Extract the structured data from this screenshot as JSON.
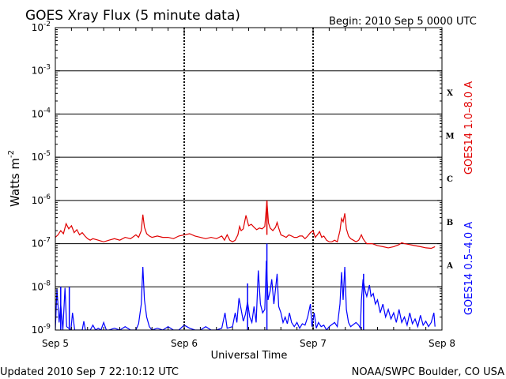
{
  "header": {
    "title": "GOES Xray Flux (5 minute data)",
    "begin": "Begin:  2010 Sep 5 0000 UTC"
  },
  "footer": {
    "updated": "Updated 2010 Sep  7 22:10:12 UTC",
    "source": "NOAA/SWPC Boulder, CO USA"
  },
  "colors": {
    "long_channel": "#e00000",
    "short_channel": "#0000ff",
    "axis": "#000000"
  },
  "chart_data": {
    "type": "line",
    "title": "GOES Xray Flux (5 minute data)",
    "xlabel": "Universal Time",
    "ylabel": "Watts m",
    "ylabel_sup": "-2",
    "yscale": "log",
    "ylim": [
      1e-09,
      0.01
    ],
    "xlim": [
      0,
      72
    ],
    "x_units": "hours since 2010 Sep 5 0000 UTC",
    "x_ticks": [
      {
        "value": 0,
        "label": "Sep 5"
      },
      {
        "value": 24,
        "label": "Sep 6"
      },
      {
        "value": 48,
        "label": "Sep 7"
      },
      {
        "value": 72,
        "label": "Sep 8"
      }
    ],
    "y_ticks": [
      {
        "value": 1e-09,
        "base": "10",
        "exp": "-9"
      },
      {
        "value": 1e-08,
        "base": "10",
        "exp": "-8"
      },
      {
        "value": 1e-07,
        "base": "10",
        "exp": "-7"
      },
      {
        "value": 1e-06,
        "base": "10",
        "exp": "-6"
      },
      {
        "value": 1e-05,
        "base": "10",
        "exp": "-5"
      },
      {
        "value": 0.0001,
        "base": "10",
        "exp": "-4"
      },
      {
        "value": 0.001,
        "base": "10",
        "exp": "-3"
      },
      {
        "value": 0.01,
        "base": "10",
        "exp": "-2"
      }
    ],
    "flare_classes": [
      {
        "label": "A",
        "value": 3.2e-08
      },
      {
        "label": "B",
        "value": 3.2e-07
      },
      {
        "label": "C",
        "value": 3.2e-06
      },
      {
        "label": "M",
        "value": 3.2e-05
      },
      {
        "label": "X",
        "value": 0.00032
      }
    ],
    "grid": "horizontal lines at each decade; dashed vertical lines at day boundaries",
    "series": [
      {
        "name": "GOES14 1.0–8.0 A",
        "color": "#e00000",
        "points": [
          [
            0.0,
            1.4e-07
          ],
          [
            0.5,
            1.6e-07
          ],
          [
            1.0,
            2e-07
          ],
          [
            1.5,
            1.7e-07
          ],
          [
            2.0,
            2.9e-07
          ],
          [
            2.5,
            2.2e-07
          ],
          [
            3.0,
            2.6e-07
          ],
          [
            3.5,
            1.8e-07
          ],
          [
            4.0,
            2.1e-07
          ],
          [
            4.5,
            1.6e-07
          ],
          [
            5.0,
            1.8e-07
          ],
          [
            5.5,
            1.5e-07
          ],
          [
            6.0,
            1.3e-07
          ],
          [
            6.5,
            1.2e-07
          ],
          [
            7.0,
            1.3e-07
          ],
          [
            8.0,
            1.2e-07
          ],
          [
            9.0,
            1.1e-07
          ],
          [
            10.0,
            1.2e-07
          ],
          [
            11.0,
            1.3e-07
          ],
          [
            12.0,
            1.2e-07
          ],
          [
            13.0,
            1.4e-07
          ],
          [
            14.0,
            1.3e-07
          ],
          [
            15.0,
            1.6e-07
          ],
          [
            15.5,
            1.4e-07
          ],
          [
            16.0,
            2e-07
          ],
          [
            16.3,
            4.7e-07
          ],
          [
            16.6,
            2.4e-07
          ],
          [
            17.0,
            1.7e-07
          ],
          [
            17.5,
            1.5e-07
          ],
          [
            18.0,
            1.4e-07
          ],
          [
            19.0,
            1.5e-07
          ],
          [
            20.0,
            1.4e-07
          ],
          [
            21.0,
            1.4e-07
          ],
          [
            22.0,
            1.3e-07
          ],
          [
            23.0,
            1.5e-07
          ],
          [
            24.0,
            1.6e-07
          ],
          [
            25.0,
            1.7e-07
          ],
          [
            26.0,
            1.5e-07
          ],
          [
            27.0,
            1.4e-07
          ],
          [
            28.0,
            1.3e-07
          ],
          [
            29.0,
            1.4e-07
          ],
          [
            30.0,
            1.3e-07
          ],
          [
            31.0,
            1.5e-07
          ],
          [
            31.5,
            1.2e-07
          ],
          [
            32.0,
            1.6e-07
          ],
          [
            32.5,
            1.2e-07
          ],
          [
            33.0,
            1.1e-07
          ],
          [
            33.5,
            1.2e-07
          ],
          [
            34.0,
            1.6e-07
          ],
          [
            34.3,
            2.5e-07
          ],
          [
            34.6,
            2e-07
          ],
          [
            35.0,
            2.2e-07
          ],
          [
            35.5,
            4.5e-07
          ],
          [
            36.0,
            2.6e-07
          ],
          [
            36.5,
            2.8e-07
          ],
          [
            37.0,
            2.4e-07
          ],
          [
            37.5,
            2.1e-07
          ],
          [
            38.0,
            2.3e-07
          ],
          [
            38.5,
            2.2e-07
          ],
          [
            39.0,
            2.5e-07
          ],
          [
            39.4,
            9.5e-07
          ],
          [
            39.7,
            3e-07
          ],
          [
            40.0,
            2.3e-07
          ],
          [
            40.5,
            2e-07
          ],
          [
            41.0,
            2.4e-07
          ],
          [
            41.3,
            3.1e-07
          ],
          [
            41.6,
            2.3e-07
          ],
          [
            42.0,
            1.6e-07
          ],
          [
            42.5,
            1.5e-07
          ],
          [
            43.0,
            1.4e-07
          ],
          [
            43.5,
            1.6e-07
          ],
          [
            44.0,
            1.5e-07
          ],
          [
            44.5,
            1.4e-07
          ],
          [
            45.0,
            1.4e-07
          ],
          [
            45.5,
            1.5e-07
          ],
          [
            46.0,
            1.5e-07
          ],
          [
            46.5,
            1.3e-07
          ],
          [
            47.0,
            1.5e-07
          ],
          [
            47.5,
            1.8e-07
          ],
          [
            48.0,
            2e-07
          ],
          [
            48.4,
            1.4e-07
          ],
          [
            48.8,
            1.6e-07
          ],
          [
            49.2,
            1.9e-07
          ],
          [
            49.6,
            1.4e-07
          ],
          [
            50.0,
            1.5e-07
          ],
          [
            50.5,
            1.2e-07
          ],
          [
            51.0,
            1.1e-07
          ],
          [
            51.5,
            1.1e-07
          ],
          [
            52.0,
            1.2e-07
          ],
          [
            52.5,
            1.1e-07
          ],
          [
            53.0,
            2e-07
          ],
          [
            53.3,
            3.8e-07
          ],
          [
            53.6,
            3.2e-07
          ],
          [
            53.9,
            5e-07
          ],
          [
            54.2,
            2.2e-07
          ],
          [
            54.6,
            1.5e-07
          ],
          [
            55.0,
            1.3e-07
          ],
          [
            55.5,
            1.2e-07
          ],
          [
            56.0,
            1.1e-07
          ],
          [
            56.5,
            1.2e-07
          ],
          [
            57.0,
            1.6e-07
          ],
          [
            57.3,
            1.3e-07
          ],
          [
            57.7,
            1.1e-07
          ],
          [
            58.0,
            1e-07
          ],
          [
            59.0,
            1e-07
          ],
          [
            60.0,
            9e-08
          ],
          [
            61.0,
            8.5e-08
          ],
          [
            62.0,
            8e-08
          ],
          [
            63.0,
            8.5e-08
          ],
          [
            64.0,
            9.5e-08
          ],
          [
            64.5,
            1.05e-07
          ],
          [
            65.0,
            1e-07
          ],
          [
            66.0,
            9.5e-08
          ],
          [
            67.0,
            9e-08
          ],
          [
            68.0,
            8.5e-08
          ],
          [
            69.0,
            8e-08
          ],
          [
            70.0,
            7.8e-08
          ],
          [
            70.7,
            8.5e-08
          ]
        ]
      },
      {
        "name": "GOES14 0.5–4.0 A",
        "color": "#0000ff",
        "points": [
          [
            0.0,
            1e-09
          ],
          [
            0.3,
            9e-09
          ],
          [
            0.7,
            1.5e-09
          ],
          [
            1.0,
            4e-09
          ],
          [
            1.4,
            1e-09
          ],
          [
            1.8,
            9.5e-09
          ],
          [
            2.1,
            1.2e-09
          ],
          [
            2.5,
            1.1e-09
          ],
          [
            2.9,
            1e-09
          ],
          [
            3.2,
            2.5e-09
          ],
          [
            3.6,
            1e-09
          ],
          [
            5.0,
            1e-09
          ],
          [
            5.3,
            1.6e-09
          ],
          [
            5.6,
            1e-09
          ],
          [
            6.5,
            1e-09
          ],
          [
            7.0,
            1.3e-09
          ],
          [
            7.5,
            1e-09
          ],
          [
            8.0,
            1.1e-09
          ],
          [
            8.5,
            1e-09
          ],
          [
            9.0,
            1.5e-09
          ],
          [
            9.5,
            1e-09
          ],
          [
            10.0,
            1e-09
          ],
          [
            11.0,
            1.1e-09
          ],
          [
            12.0,
            1e-09
          ],
          [
            13.0,
            1.2e-09
          ],
          [
            14.0,
            1e-09
          ],
          [
            15.0,
            1e-09
          ],
          [
            15.5,
            1.4e-09
          ],
          [
            16.0,
            4e-09
          ],
          [
            16.3,
            2.9e-08
          ],
          [
            16.6,
            5e-09
          ],
          [
            17.0,
            2e-09
          ],
          [
            17.5,
            1.2e-09
          ],
          [
            18.0,
            1e-09
          ],
          [
            19.0,
            1.1e-09
          ],
          [
            20.0,
            1e-09
          ],
          [
            21.0,
            1.2e-09
          ],
          [
            22.0,
            1e-09
          ],
          [
            23.0,
            1e-09
          ],
          [
            24.0,
            1.3e-09
          ],
          [
            25.0,
            1.1e-09
          ],
          [
            26.0,
            1e-09
          ],
          [
            27.0,
            1e-09
          ],
          [
            28.0,
            1.2e-09
          ],
          [
            29.0,
            1e-09
          ],
          [
            30.0,
            1e-09
          ],
          [
            31.0,
            1.1e-09
          ],
          [
            31.6,
            2.5e-09
          ],
          [
            32.0,
            1.1e-09
          ],
          [
            33.0,
            1.2e-09
          ],
          [
            33.5,
            2.5e-09
          ],
          [
            33.8,
            1.5e-09
          ],
          [
            34.2,
            5.5e-09
          ],
          [
            34.6,
            3e-09
          ],
          [
            35.0,
            1.6e-09
          ],
          [
            35.4,
            2.3e-09
          ],
          [
            35.8,
            4.5e-09
          ],
          [
            36.2,
            2e-09
          ],
          [
            36.6,
            1.5e-09
          ],
          [
            37.0,
            3.5e-09
          ],
          [
            37.4,
            1.5e-09
          ],
          [
            37.8,
            2.4e-08
          ],
          [
            38.2,
            4e-09
          ],
          [
            38.6,
            2.5e-09
          ],
          [
            39.0,
            3e-09
          ],
          [
            39.3,
            4e-08
          ],
          [
            39.6,
            5e-09
          ],
          [
            40.0,
            8e-09
          ],
          [
            40.3,
            1.5e-08
          ],
          [
            40.7,
            4e-09
          ],
          [
            41.0,
            9e-09
          ],
          [
            41.3,
            2e-08
          ],
          [
            41.6,
            3.5e-09
          ],
          [
            42.0,
            2.5e-09
          ],
          [
            42.4,
            1.5e-09
          ],
          [
            42.8,
            2e-09
          ],
          [
            43.2,
            1.4e-09
          ],
          [
            43.6,
            2.5e-09
          ],
          [
            44.0,
            1.5e-09
          ],
          [
            44.5,
            1.2e-09
          ],
          [
            45.0,
            1.5e-09
          ],
          [
            45.5,
            1.1e-09
          ],
          [
            46.0,
            1.4e-09
          ],
          [
            46.5,
            1.3e-09
          ],
          [
            47.0,
            2e-09
          ],
          [
            47.5,
            4e-09
          ],
          [
            47.8,
            1.2e-09
          ],
          [
            48.2,
            2.5e-09
          ],
          [
            48.6,
            1.1e-09
          ],
          [
            49.0,
            1.5e-09
          ],
          [
            49.5,
            1.2e-09
          ],
          [
            50.0,
            1.3e-09
          ],
          [
            50.5,
            1e-09
          ],
          [
            51.0,
            1.2e-09
          ],
          [
            52.0,
            1.5e-09
          ],
          [
            52.5,
            1.2e-09
          ],
          [
            53.0,
            4e-09
          ],
          [
            53.3,
            2.2e-08
          ],
          [
            53.6,
            5e-09
          ],
          [
            53.9,
            2.9e-08
          ],
          [
            54.2,
            3e-09
          ],
          [
            54.6,
            1.5e-09
          ],
          [
            55.0,
            1.2e-09
          ],
          [
            56.0,
            1.5e-09
          ],
          [
            56.5,
            1.3e-09
          ],
          [
            56.8,
            1.1e-09
          ],
          [
            57.0,
            5e-09
          ],
          [
            57.3,
            1.5e-08
          ],
          [
            57.7,
            8e-09
          ],
          [
            58.0,
            6e-09
          ],
          [
            58.5,
            1.1e-08
          ],
          [
            58.8,
            6e-09
          ],
          [
            59.2,
            7e-09
          ],
          [
            59.6,
            4e-09
          ],
          [
            60.0,
            5e-09
          ],
          [
            60.5,
            2.5e-09
          ],
          [
            61.0,
            4e-09
          ],
          [
            61.5,
            2e-09
          ],
          [
            62.0,
            3e-09
          ],
          [
            62.5,
            1.8e-09
          ],
          [
            63.0,
            2.5e-09
          ],
          [
            63.5,
            1.5e-09
          ],
          [
            64.0,
            3e-09
          ],
          [
            64.5,
            1.5e-09
          ],
          [
            65.0,
            2e-09
          ],
          [
            65.5,
            1.3e-09
          ],
          [
            66.0,
            2.5e-09
          ],
          [
            66.5,
            1.4e-09
          ],
          [
            67.0,
            1.8e-09
          ],
          [
            67.5,
            1.2e-09
          ],
          [
            68.0,
            2.2e-09
          ],
          [
            68.5,
            1.3e-09
          ],
          [
            69.0,
            1.6e-09
          ],
          [
            69.5,
            1.2e-09
          ],
          [
            70.0,
            1.5e-09
          ],
          [
            70.5,
            2.5e-09
          ],
          [
            70.7,
            1.2e-09
          ]
        ]
      }
    ],
    "spikes": [
      {
        "series": 0,
        "x": 39.4,
        "from": 1.6e-07,
        "to": 1e-06
      },
      {
        "series": 1,
        "x": 39.4,
        "from": 1e-09,
        "to": 1e-07
      },
      {
        "series": 1,
        "x": 1.0,
        "from": 1e-09,
        "to": 1e-08
      },
      {
        "series": 1,
        "x": 2.6,
        "from": 1e-09,
        "to": 1e-08
      },
      {
        "series": 1,
        "x": 35.8,
        "from": 1e-09,
        "to": 1.2e-08
      },
      {
        "series": 1,
        "x": 57.4,
        "from": 1e-09,
        "to": 2e-08
      }
    ]
  }
}
